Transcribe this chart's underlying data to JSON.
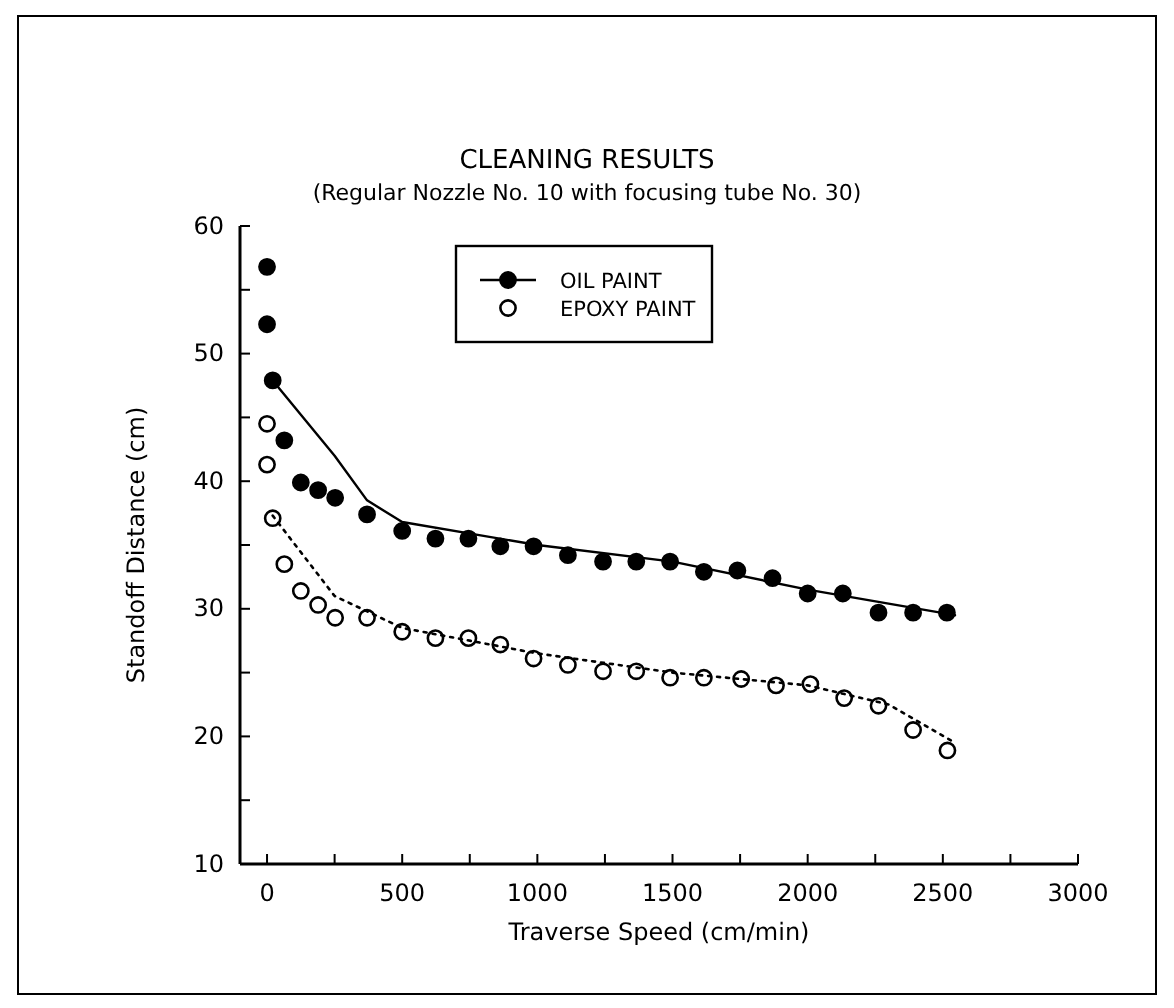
{
  "chart_data": {
    "type": "scatter",
    "title": "CLEANING RESULTS",
    "subtitle": "(Regular Nozzle No. 10 with focusing tube No. 30)",
    "xlabel": "Traverse Speed (cm/min)",
    "ylabel": "Standoff Distance (cm)",
    "xlim": [
      -100,
      3000
    ],
    "ylim": [
      10,
      60
    ],
    "xticks": [
      0,
      {
        "value": 250,
        "label": null
      },
      500,
      {
        "value": 750,
        "label": null
      },
      1000,
      {
        "value": 1250,
        "label": null
      },
      1500,
      {
        "value": 1750,
        "label": null
      },
      2000,
      {
        "value": 2250,
        "label": null
      },
      2500,
      {
        "value": 2750,
        "label": null
      },
      3000
    ],
    "yticks": [
      10,
      {
        "value": 15,
        "label": null
      },
      20,
      {
        "value": 25,
        "label": null
      },
      30,
      {
        "value": 35,
        "label": null
      },
      40,
      {
        "value": 45,
        "label": null
      },
      50,
      {
        "value": 55,
        "label": null
      },
      60
    ],
    "legend": "top",
    "grid": false,
    "series": [
      {
        "name": "OIL PAINT",
        "color": "#000000",
        "marker": "circle",
        "x": [
          0,
          0,
          21,
          64,
          125,
          189,
          252,
          370,
          500,
          623,
          745,
          863,
          986,
          1113,
          1243,
          1366,
          1491,
          1616,
          1740,
          1870,
          2000,
          2130,
          2262,
          2390,
          2515
        ],
        "values": [
          56.8,
          52.3,
          47.9,
          43.2,
          39.9,
          39.3,
          38.7,
          37.4,
          36.1,
          35.5,
          35.5,
          34.9,
          34.9,
          34.2,
          33.7,
          33.7,
          33.7,
          32.9,
          33.0,
          32.4,
          31.2,
          31.2,
          29.7,
          29.7,
          29.7
        ]
      },
      {
        "name": "EPOXY PAINT",
        "color": "#000000",
        "marker": "circle-open",
        "x": [
          0,
          0,
          21,
          64,
          125,
          189,
          252,
          370,
          500,
          623,
          745,
          863,
          986,
          1113,
          1243,
          1366,
          1491,
          1616,
          1754,
          1883,
          2010,
          2135,
          2262,
          2390,
          2517
        ],
        "values": [
          44.5,
          41.3,
          37.1,
          33.5,
          31.4,
          30.3,
          29.3,
          29.3,
          28.2,
          27.7,
          27.7,
          27.2,
          26.1,
          25.6,
          25.1,
          25.1,
          24.6,
          24.6,
          24.5,
          24.0,
          24.1,
          23.0,
          22.4,
          20.5,
          18.9
        ]
      },
      {
        "type": "line",
        "color": "#000000",
        "line_style": "solid",
        "x": [
          21,
          250,
          370,
          500,
          1000,
          1500,
          2000,
          2545
        ],
        "values": [
          47.9,
          42.0,
          38.5,
          36.8,
          35.0,
          33.7,
          31.5,
          29.5
        ]
      },
      {
        "type": "line",
        "color": "#000000",
        "line_style": "dotted",
        "x": [
          21,
          250,
          500,
          1000,
          1500,
          2000,
          2300,
          2545
        ],
        "values": [
          37.3,
          31.0,
          28.5,
          26.5,
          25.0,
          24.0,
          22.5,
          19.5
        ]
      }
    ]
  }
}
